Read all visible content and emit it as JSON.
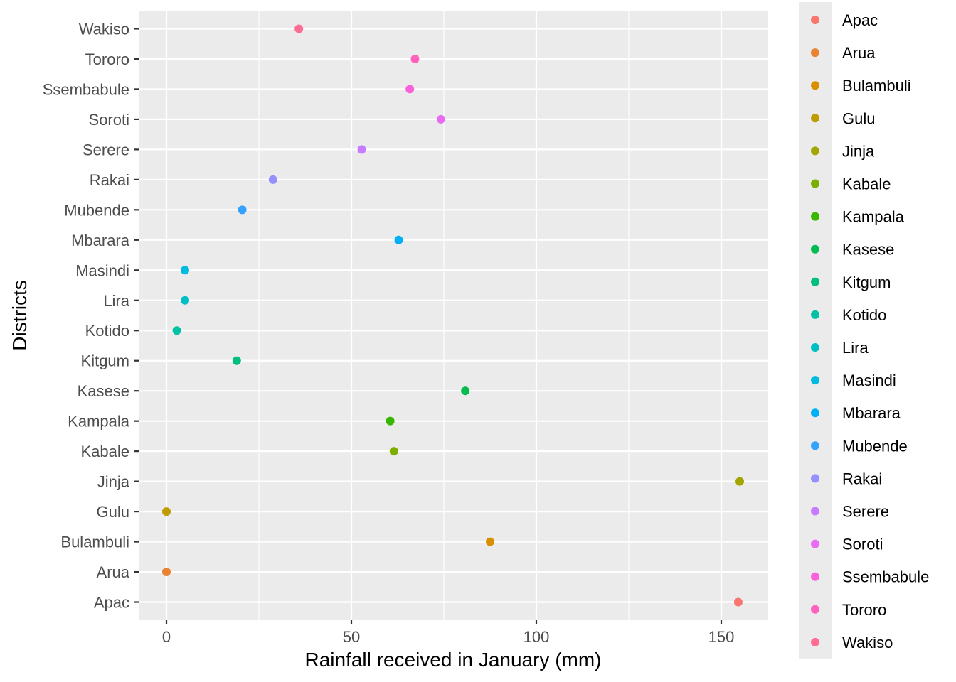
{
  "chart_data": {
    "type": "scatter",
    "xlabel": "Rainfall received in January (mm)",
    "ylabel": "Districts",
    "xlim": [
      -7.5,
      162.5
    ],
    "x_ticks": [
      0,
      50,
      100,
      150
    ],
    "categories": [
      "Apac",
      "Arua",
      "Bulambuli",
      "Gulu",
      "Jinja",
      "Kabale",
      "Kampala",
      "Kasese",
      "Kitgum",
      "Kotido",
      "Lira",
      "Masindi",
      "Mbarara",
      "Mubende",
      "Rakai",
      "Serere",
      "Soroti",
      "Ssembabule",
      "Tororo",
      "Wakiso"
    ],
    "values": [
      154.6,
      0,
      87.5,
      0,
      155,
      61.5,
      60.5,
      80.8,
      19,
      2.8,
      5,
      5,
      62.8,
      20.5,
      28.8,
      52.8,
      74.2,
      65.8,
      67.2,
      35.8
    ],
    "colors": [
      "#F8766D",
      "#EA8331",
      "#D89000",
      "#C09B00",
      "#A3A500",
      "#7CAE00",
      "#39B600",
      "#00BB4E",
      "#00BF7D",
      "#00C1A3",
      "#00BFC4",
      "#00BAE0",
      "#00B0F6",
      "#35A2FF",
      "#9590FF",
      "#C77CFF",
      "#E76BF3",
      "#FA62DB",
      "#FF62BC",
      "#FF6C91"
    ],
    "grid": true,
    "legend_position": "right",
    "legend_entries": [
      "Apac",
      "Arua",
      "Bulambuli",
      "Gulu",
      "Jinja",
      "Kabale",
      "Kampala",
      "Kasese",
      "Kitgum",
      "Kotido",
      "Lira",
      "Masindi",
      "Mbarara",
      "Mubende",
      "Rakai",
      "Serere",
      "Soroti",
      "Ssembabule",
      "Tororo",
      "Wakiso"
    ]
  }
}
